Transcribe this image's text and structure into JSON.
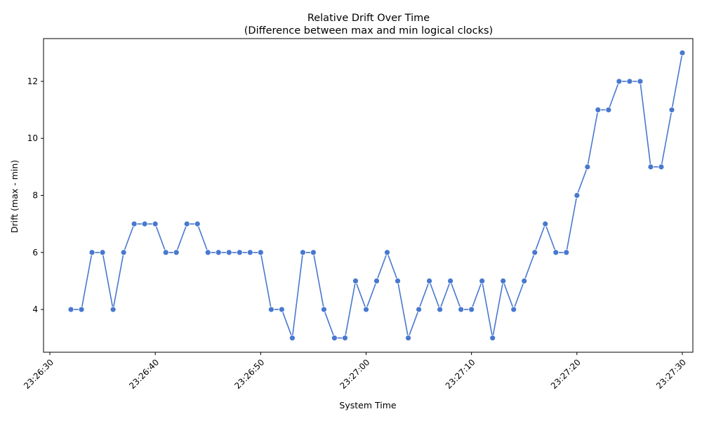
{
  "chart_data": {
    "type": "line",
    "title": "Relative Drift Over Time",
    "subtitle": "(Difference between max and min logical clocks)",
    "xlabel": "System Time",
    "ylabel": "Drift (max - min)",
    "x_ticks": [
      "23:26:30",
      "23:26:40",
      "23:26:50",
      "23:27:00",
      "23:27:10",
      "23:27:20",
      "23:27:30"
    ],
    "y_ticks": [
      "4",
      "6",
      "8",
      "10",
      "12"
    ],
    "xlim": [
      "23:26:29.4",
      "23:27:31"
    ],
    "ylim": [
      2.5,
      13.5
    ],
    "grid": false,
    "color": "#4878cf",
    "series": [
      {
        "x": [
          "23:26:32",
          "23:26:33",
          "23:26:34",
          "23:26:35",
          "23:26:36",
          "23:26:37",
          "23:26:38",
          "23:26:39",
          "23:26:40",
          "23:26:41",
          "23:26:42",
          "23:26:43",
          "23:26:44",
          "23:26:45",
          "23:26:46",
          "23:26:47",
          "23:26:48",
          "23:26:49",
          "23:26:50",
          "23:26:51",
          "23:26:52",
          "23:26:53",
          "23:26:54",
          "23:26:55",
          "23:26:56",
          "23:26:57",
          "23:26:58",
          "23:26:59",
          "23:27:00",
          "23:27:01",
          "23:27:02",
          "23:27:03",
          "23:27:04",
          "23:27:05",
          "23:27:06",
          "23:27:07",
          "23:27:08",
          "23:27:09",
          "23:27:10",
          "23:27:11",
          "23:27:12",
          "23:27:13",
          "23:27:14",
          "23:27:15",
          "23:27:16",
          "23:27:17",
          "23:27:18",
          "23:27:19",
          "23:27:20",
          "23:27:21",
          "23:27:22",
          "23:27:23",
          "23:27:24",
          "23:27:25",
          "23:27:26",
          "23:27:27",
          "23:27:28",
          "23:27:29",
          "23:27:30"
        ],
        "values": [
          4,
          4,
          6,
          6,
          4,
          6,
          7,
          7,
          7,
          6,
          6,
          7,
          7,
          6,
          6,
          6,
          6,
          6,
          6,
          4,
          4,
          3,
          6,
          6,
          4,
          3,
          3,
          5,
          4,
          5,
          6,
          5,
          3,
          4,
          5,
          4,
          5,
          4,
          4,
          5,
          3,
          5,
          4,
          5,
          6,
          7,
          6,
          6,
          8,
          9,
          11,
          11,
          12,
          12,
          12,
          9,
          9,
          11,
          13
        ]
      }
    ]
  }
}
